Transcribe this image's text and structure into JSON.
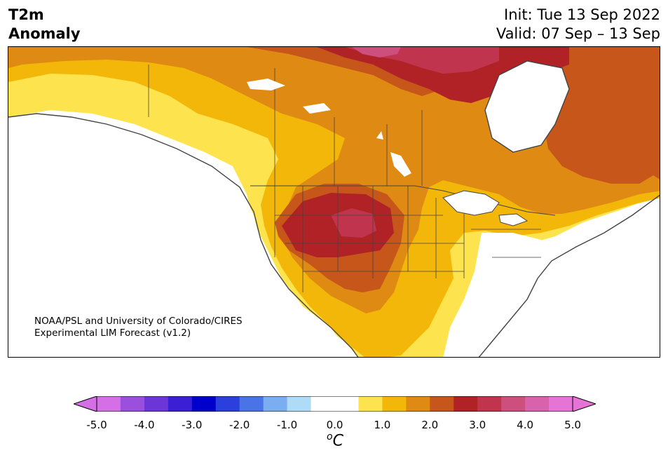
{
  "title": {
    "variable": "T2m",
    "quantity": "Anomaly",
    "init": "Init: Tue 13 Sep 2022",
    "valid": "Valid: 07 Sep – 13 Sep"
  },
  "credit": {
    "line1": "NOAA/PSL and University of Colorado/CIRES",
    "line2": "Experimental LIM Forecast (v1.2)"
  },
  "colorbar": {
    "unit_base": "C",
    "unit_sup": "o",
    "ticks": [
      "-5.0",
      "-4.0",
      "-3.0",
      "-2.0",
      "-1.0",
      "0.0",
      "1.0",
      "2.0",
      "3.0",
      "4.0",
      "5.0"
    ],
    "colors": [
      "#d46fe6",
      "#9b50dd",
      "#6b35d8",
      "#3a1fd4",
      "#0000cc",
      "#2a3fdc",
      "#4a74e6",
      "#7aaef0",
      "#aedcf8",
      "#ffffff",
      "#ffffff",
      "#fde44f",
      "#f3b70a",
      "#df8a12",
      "#c6561a",
      "#b02226",
      "#c0344e",
      "#cc4f7d",
      "#d862ab",
      "#e673d6"
    ],
    "under_color": "#d46fe6",
    "over_color": "#e673d6"
  },
  "map": {
    "region": "North America",
    "colors": {
      "c0_5": "#fde44f",
      "c1_0": "#f3b70a",
      "c1_5": "#df8a12",
      "c2_0": "#c6561a",
      "c2_5": "#b02226",
      "c3_0": "#c0344e",
      "c3_5": "#cc4f7d",
      "land_border": "#444444"
    }
  }
}
